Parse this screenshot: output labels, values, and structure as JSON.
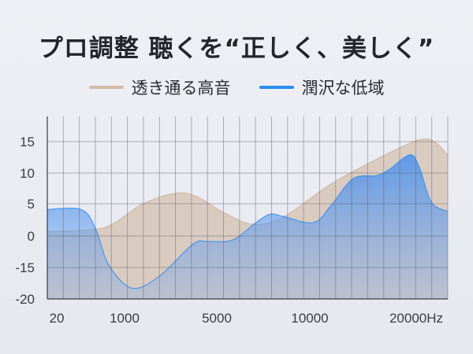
{
  "title": "プロ調整 聴くを“正しく、美しく”",
  "chart_data": {
    "type": "area",
    "title": "",
    "xlabel": "",
    "ylabel": "",
    "x_ticks": [
      {
        "value": 20,
        "label": "20"
      },
      {
        "value": 1000,
        "label": "1000"
      },
      {
        "value": 5000,
        "label": "5000"
      },
      {
        "value": 10000,
        "label": "10000"
      },
      {
        "value": 20000,
        "label": "20000Hz"
      }
    ],
    "x_scale_anchors_hz": [
      0,
      20,
      1000,
      5000,
      10000,
      20000,
      24000
    ],
    "y_ticks": [
      15,
      10,
      5,
      0,
      -15,
      -20
    ],
    "y_scale": "non-uniform (ticks equally spaced)",
    "grid": true,
    "legend_position": "top-center",
    "series": [
      {
        "name": "透き通る高音",
        "color": "#cdb29c",
        "fill": "#d9c9bd",
        "points": [
          [
            0,
            0.7
          ],
          [
            556,
            1.0
          ],
          [
            852,
            2.0
          ],
          [
            1752,
            4.9
          ],
          [
            3188,
            6.7
          ],
          [
            4111,
            6.2
          ],
          [
            5339,
            3.7
          ],
          [
            6949,
            1.8
          ],
          [
            8602,
            3.0
          ],
          [
            12295,
            8.3
          ],
          [
            18525,
            13.4
          ],
          [
            21585,
            15.4
          ],
          [
            23019,
            14.6
          ],
          [
            24000,
            12.8
          ]
        ]
      },
      {
        "name": "潤沢な低域",
        "color": "#2b8cf2",
        "fill": "#4a94ef",
        "points": [
          [
            0,
            4.1
          ],
          [
            373,
            4.1
          ],
          [
            578,
            1.2
          ],
          [
            772,
            -13.9
          ],
          [
            1342,
            -18.3
          ],
          [
            2538,
            -16.3
          ],
          [
            3974,
            -3.8
          ],
          [
            4624,
            -2.6
          ],
          [
            5847,
            -1.9
          ],
          [
            7119,
            2.1
          ],
          [
            7881,
            3.4
          ],
          [
            8602,
            3.0
          ],
          [
            10410,
            2.1
          ],
          [
            12295,
            4.9
          ],
          [
            14508,
            9.1
          ],
          [
            16967,
            9.6
          ],
          [
            18279,
            10.6
          ],
          [
            20377,
            12.9
          ],
          [
            21283,
            10.9
          ],
          [
            22415,
            5.3
          ],
          [
            24000,
            3.8
          ]
        ]
      }
    ]
  }
}
